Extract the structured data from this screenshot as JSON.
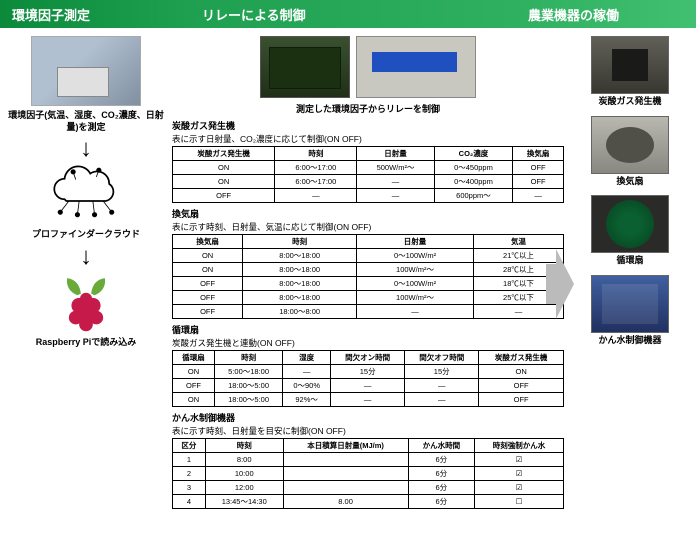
{
  "headers": {
    "h1": "環境因子測定",
    "h2": "リレーによる制御",
    "h3": "農業機器の稼働"
  },
  "col1": {
    "sensor_caption": "環境因子(気温、湿度、CO₂濃度、日射量)を測定",
    "cloud_caption": "プロファインダークラウド",
    "rasp_caption": "Raspberry Piで読み込み"
  },
  "col2": {
    "pi_caption": "測定した環境因子からリレーを制御",
    "co2": {
      "title": "炭酸ガス発生機",
      "sub": "表に示す日射量、CO₂濃度に応じて制御(ON OFF)",
      "cols": [
        "炭酸ガス発生機",
        "時刻",
        "日射量",
        "CO₂濃度",
        "換気扇"
      ],
      "rows": [
        [
          "ON",
          "6:00～17:00",
          "500W/m²～",
          "0～450ppm",
          "OFF"
        ],
        [
          "ON",
          "6:00～17:00",
          "—",
          "0～400ppm",
          "OFF"
        ],
        [
          "OFF",
          "—",
          "—",
          "600ppm～",
          "—"
        ]
      ]
    },
    "fan": {
      "title": "換気扇",
      "sub": "表に示す時刻、日射量、気温に応じて制御(ON OFF)",
      "cols": [
        "換気扇",
        "時刻",
        "日射量",
        "気温"
      ],
      "rows": [
        [
          "ON",
          "8:00～18:00",
          "0～100W/m²",
          "21℃以上"
        ],
        [
          "ON",
          "8:00～18:00",
          "100W/m²～",
          "28℃以上"
        ],
        [
          "OFF",
          "8:00～18:00",
          "0～100W/m²",
          "18℃以下"
        ],
        [
          "OFF",
          "8:00～18:00",
          "100W/m²～",
          "25℃以下"
        ],
        [
          "OFF",
          "18:00～8:00",
          "—",
          "—"
        ]
      ]
    },
    "circ": {
      "title": "循環扇",
      "sub": "炭酸ガス発生機と連動(ON OFF)",
      "cols": [
        "循環扇",
        "時刻",
        "湿度",
        "間欠オン時間",
        "間欠オフ時間",
        "炭酸ガス発生機"
      ],
      "rows": [
        [
          "ON",
          "5:00～18:00",
          "—",
          "15分",
          "15分",
          "ON"
        ],
        [
          "OFF",
          "18:00～5:00",
          "0～90%",
          "—",
          "—",
          "OFF"
        ],
        [
          "ON",
          "18:00～5:00",
          "92%～",
          "—",
          "—",
          "OFF"
        ]
      ]
    },
    "irr": {
      "title": "かん水制御機器",
      "sub": "表に示す時刻、日射量を目安に制御(ON OFF)",
      "cols": [
        "区分",
        "時刻",
        "本日積算日射量(MJ/m)",
        "かん水時間",
        "時刻強制かん水"
      ],
      "rows": [
        [
          "1",
          "8:00",
          "",
          "6分",
          "☑"
        ],
        [
          "2",
          "10:00",
          "",
          "6分",
          "☑"
        ],
        [
          "3",
          "12:00",
          "",
          "6分",
          "☑"
        ],
        [
          "4",
          "13:45～14:30",
          "8.00",
          "6分",
          "☐"
        ]
      ]
    }
  },
  "col3": {
    "devices": [
      {
        "label": "炭酸ガス発生機",
        "cls": "dev1"
      },
      {
        "label": "換気扇",
        "cls": "dev2"
      },
      {
        "label": "循環扇",
        "cls": "dev3"
      },
      {
        "label": "かん水制御機器",
        "cls": "dev4"
      }
    ]
  },
  "colors": {
    "header_green_dark": "#0a8a3a",
    "header_green_light": "#40c070",
    "arrow_gray": "#bbbbbb",
    "raspberry": "#c51a4a"
  }
}
